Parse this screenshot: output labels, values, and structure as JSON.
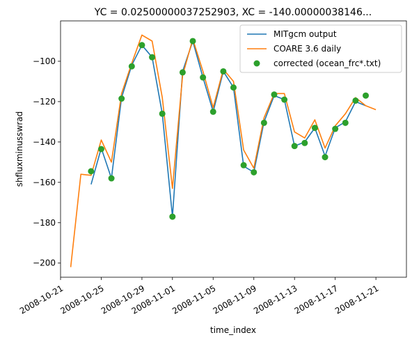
{
  "chart_data": {
    "type": "line",
    "title": "YC = 0.02500000037252903, XC = -140.00000038146...",
    "xlabel": "time_index",
    "ylabel": "shfluxminusswrad",
    "x_start": "2008-10-21",
    "xlim": [
      "2008-10-21",
      "2008-11-24"
    ],
    "ylim": [
      -207,
      -80
    ],
    "x_ticks": [
      "2008-10-21",
      "2008-10-25",
      "2008-10-29",
      "2008-11-01",
      "2008-11-05",
      "2008-11-09",
      "2008-11-13",
      "2008-11-17",
      "2008-11-21"
    ],
    "y_ticks": [
      -200,
      -180,
      -160,
      -140,
      -120,
      -100
    ],
    "legend_position": "top-right",
    "series": [
      {
        "name": "MITgcm output",
        "kind": "line",
        "color": "#1f77b4",
        "x": [
          "2008-10-24",
          "2008-10-25",
          "2008-10-26",
          "2008-10-27",
          "2008-10-28",
          "2008-10-29",
          "2008-10-30",
          "2008-10-31",
          "2008-11-01",
          "2008-11-02",
          "2008-11-03",
          "2008-11-04",
          "2008-11-05",
          "2008-11-06",
          "2008-11-07",
          "2008-11-08",
          "2008-11-09",
          "2008-11-10",
          "2008-11-11",
          "2008-11-12",
          "2008-11-13",
          "2008-11-14",
          "2008-11-15",
          "2008-11-16",
          "2008-11-17",
          "2008-11-18",
          "2008-11-19",
          "2008-11-20"
        ],
        "y": [
          -161,
          -143,
          -158,
          -118,
          -102,
          -92,
          -98,
          -126,
          -177,
          -105,
          -90,
          -108,
          -125,
          -105,
          -113,
          -152,
          -155,
          -130,
          -117,
          -119,
          -142,
          -140,
          -133,
          -147,
          -133,
          -130,
          -120,
          -122
        ]
      },
      {
        "name": "COARE 3.6 daily",
        "kind": "line",
        "color": "#ff7f0e",
        "x": [
          "2008-10-22",
          "2008-10-23",
          "2008-10-24",
          "2008-10-25",
          "2008-10-26",
          "2008-10-27",
          "2008-10-28",
          "2008-10-29",
          "2008-10-30",
          "2008-10-31",
          "2008-11-01",
          "2008-11-02",
          "2008-11-03",
          "2008-11-04",
          "2008-11-05",
          "2008-11-06",
          "2008-11-07",
          "2008-11-08",
          "2008-11-09",
          "2008-11-10",
          "2008-11-11",
          "2008-11-12",
          "2008-11-13",
          "2008-11-14",
          "2008-11-15",
          "2008-11-16",
          "2008-11-17",
          "2008-11-18",
          "2008-11-19",
          "2008-11-20",
          "2008-11-21"
        ],
        "y": [
          -202,
          -156,
          -156.5,
          -139,
          -150,
          -116,
          -101,
          -87,
          -90,
          -118,
          -163,
          -107,
          -89,
          -105,
          -123,
          -104,
          -110,
          -144,
          -153,
          -128,
          -116,
          -116,
          -135,
          -138,
          -129,
          -143,
          -132,
          -126,
          -118,
          -122,
          -124
        ]
      },
      {
        "name": "corrected (ocean_frc*.txt)",
        "kind": "scatter",
        "color": "#2ca02c",
        "x": [
          "2008-10-24",
          "2008-10-25",
          "2008-10-26",
          "2008-10-27",
          "2008-10-28",
          "2008-10-29",
          "2008-10-30",
          "2008-10-31",
          "2008-11-01",
          "2008-11-02",
          "2008-11-03",
          "2008-11-04",
          "2008-11-05",
          "2008-11-06",
          "2008-11-07",
          "2008-11-08",
          "2008-11-09",
          "2008-11-10",
          "2008-11-11",
          "2008-11-12",
          "2008-11-13",
          "2008-11-14",
          "2008-11-15",
          "2008-11-16",
          "2008-11-17",
          "2008-11-18",
          "2008-11-19",
          "2008-11-20"
        ],
        "y": [
          -154.5,
          -143.5,
          -158,
          -118.5,
          -102.5,
          -92,
          -98,
          -126,
          -177,
          -105.5,
          -90,
          -108,
          -125,
          -105,
          -113,
          -151.5,
          -155,
          -130.5,
          -116.5,
          -119,
          -142,
          -140.5,
          -133,
          -147.5,
          -133.5,
          -130.5,
          -119.5,
          -117
        ]
      }
    ]
  }
}
